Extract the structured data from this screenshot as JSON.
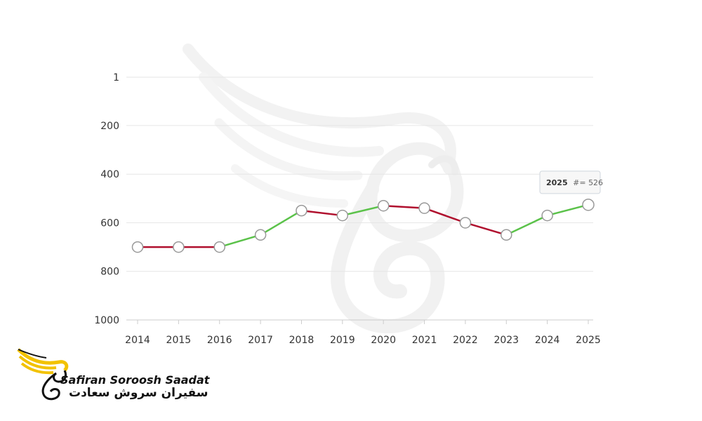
{
  "chart_data": {
    "type": "line",
    "title": "",
    "xlabel": "",
    "ylabel": "",
    "y_reversed": true,
    "ylim": [
      1,
      1000
    ],
    "y_ticks": [
      "1",
      "200",
      "400",
      "600",
      "800",
      "1000"
    ],
    "y_tick_values": [
      1,
      200,
      400,
      600,
      800,
      1000
    ],
    "categories": [
      "2014",
      "2015",
      "2016",
      "2017",
      "2018",
      "2019",
      "2020",
      "2021",
      "2022",
      "2023",
      "2024",
      "2025"
    ],
    "series": [
      {
        "values": [
          700,
          700,
          700,
          650,
          550,
          570,
          530,
          540,
          600,
          650,
          570,
          526
        ]
      }
    ],
    "colors": {
      "improving": "#5bc24a",
      "declining": "#b0102e",
      "highlight_point": "#0c63b5"
    },
    "grid": true,
    "tooltip": {
      "year": "2025",
      "prefix": "#=",
      "value": "526"
    }
  },
  "logo": {
    "latin": "Safiran Soroosh Saadat",
    "persian": "سفیران سروش سعادت",
    "colors": {
      "wing": "#f2c200",
      "ink": "#111111"
    }
  }
}
